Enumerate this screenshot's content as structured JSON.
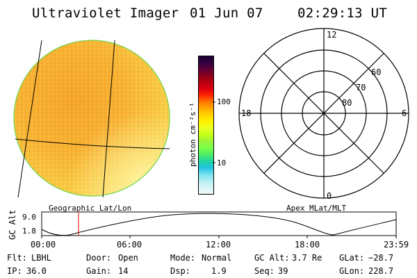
{
  "header": {
    "instrument": "Ultraviolet Imager",
    "date": "01 Jun 07",
    "time": "02:29:13 UT"
  },
  "colorbar": {
    "unit_label": "photon cm⁻²s⁻¹",
    "ticks": [
      "100",
      "10"
    ],
    "colors": [
      "#1a0033",
      "#33003f",
      "#600038",
      "#8b0018",
      "#b80010",
      "#e00010",
      "#ff2a00",
      "#ff7a00",
      "#ffaa00",
      "#ffd600",
      "#fff200",
      "#e8ff22",
      "#c3ff18",
      "#9cf23a",
      "#78ff4a",
      "#4ded66",
      "#22d6a0",
      "#22c2e0",
      "#74e0ee",
      "#b2eef2",
      "#d8f4f6",
      "#f0f8fa"
    ]
  },
  "map_left": {
    "label": "Geographic Lat/Lon"
  },
  "map_right": {
    "label": "Apex MLat/MLT",
    "mlt_labels": {
      "top": "12",
      "right": "6",
      "bottom": "0",
      "left": "18"
    },
    "lat_labels": [
      "60",
      "70",
      "80"
    ]
  },
  "altitude_plot": {
    "ylabel": "GC Alt",
    "yticks": [
      "9.0",
      "1.8"
    ],
    "xticks": [
      "00:00",
      "06:00",
      "12:00",
      "18:00",
      "23:59"
    ]
  },
  "status": {
    "flt_label": "Flt:",
    "flt_value": "LBHL",
    "ip_label": "IP:",
    "ip_value": "36.0",
    "door_label": "Door:",
    "door_value": "Open",
    "gain_label": "Gain:",
    "gain_value": "14",
    "mode_label": "Mode:",
    "mode_value": "Normal",
    "dsp_label": "Dsp:",
    "dsp_value": "1.9",
    "gcalt_label": "GC Alt:",
    "gcalt_value": "3.7 Re",
    "seq_label": "Seq:",
    "seq_value": "39",
    "glat_label": "GLat:",
    "glat_value": "−28.7",
    "glon_label": "GLon:",
    "glon_value": "228.7"
  }
}
